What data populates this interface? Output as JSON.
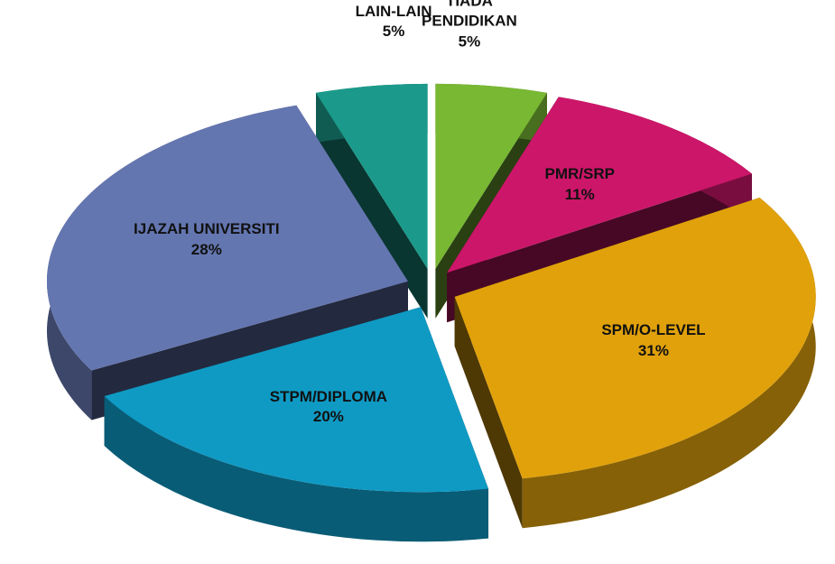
{
  "chart_data": {
    "type": "pie",
    "categories": [
      "TIADA PENDIDIKAN",
      "PMR/SRP",
      "SPM/O-LEVEL",
      "STPM/DIPLOMA",
      "IJAZAH UNIVERSITI",
      "LAIN-LAIN"
    ],
    "values": [
      5,
      11,
      31,
      20,
      28,
      5
    ],
    "value_labels": [
      "5%",
      "11%",
      "31%",
      "20%",
      "28%",
      "5%"
    ],
    "colors": [
      "#78b833",
      "#cc1669",
      "#e0a10b",
      "#0f9ac4",
      "#6476b0",
      "#1b9a8b"
    ]
  }
}
